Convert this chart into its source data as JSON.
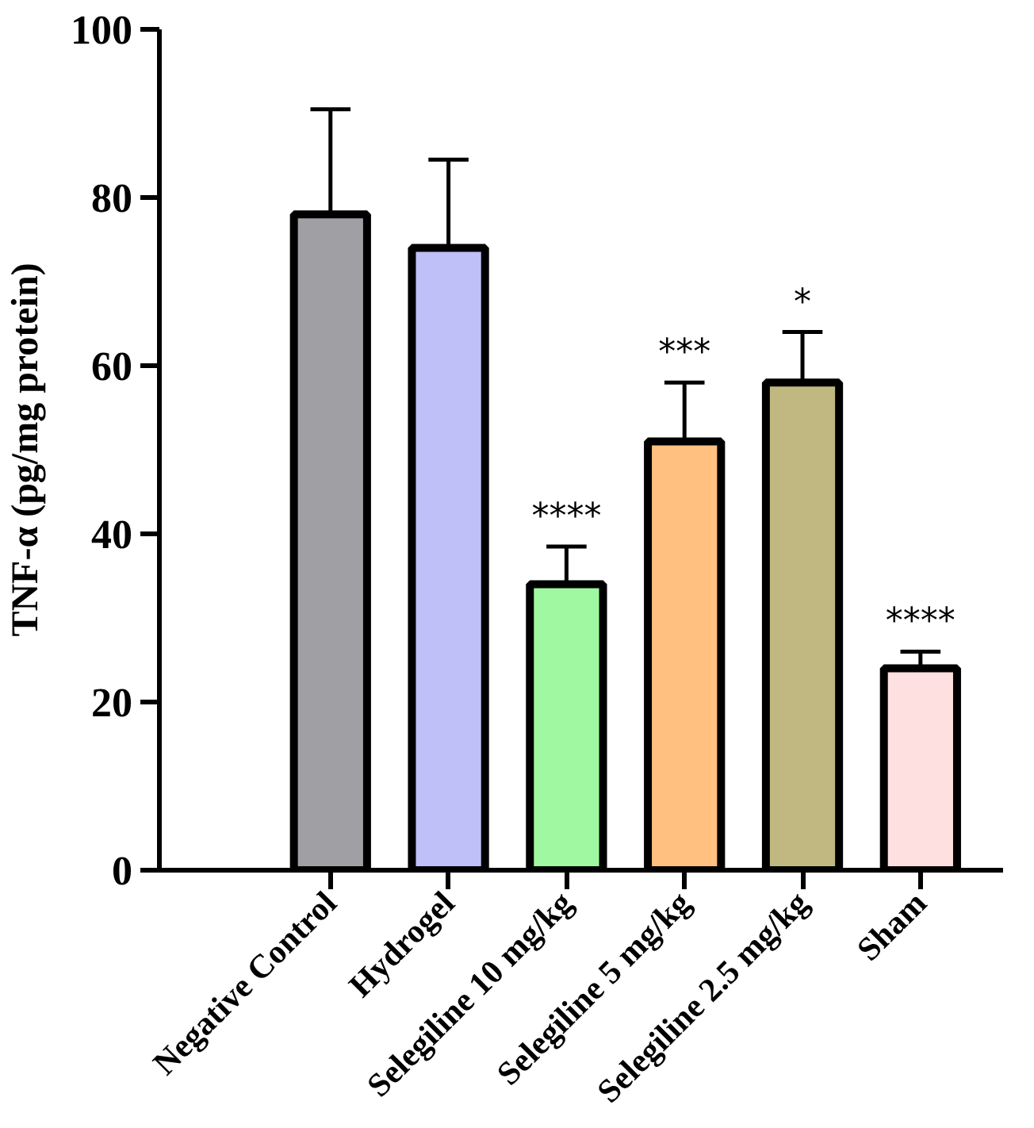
{
  "chart_data": {
    "type": "bar",
    "ylabel": "TNF-α (pg/mg protein)",
    "categories": [
      "Negative Control",
      "Hydrogel",
      "Selegiline 10 mg/kg",
      "Selegiline 5 mg/kg",
      "Selegiline 2.5 mg/kg",
      "Sham"
    ],
    "values": [
      78,
      74,
      34,
      51,
      58,
      24
    ],
    "errors": [
      [
        78,
        90.5
      ],
      [
        74,
        84.5
      ],
      [
        34,
        38.5
      ],
      [
        51,
        58
      ],
      [
        58,
        64
      ],
      [
        24,
        26
      ]
    ],
    "colors": [
      "#a0a0a4",
      "#c0c0f8",
      "#a0f8a0",
      "#ffc080",
      "#c0b880",
      "#ffe0e0"
    ],
    "ylim": [
      0,
      100
    ],
    "yticks": [
      0,
      20,
      40,
      60,
      80,
      100
    ],
    "grid": false,
    "annotations": [
      {
        "text": "****",
        "x": "Selegiline 10 mg/kg",
        "y": 38.5
      },
      {
        "text": "***",
        "x": "Selegiline 5 mg/kg",
        "y": 58
      },
      {
        "text": "*",
        "x": "Selegiline 2.5 mg/kg",
        "y": 64
      },
      {
        "text": "****",
        "x": "Sham",
        "y": 26
      }
    ]
  }
}
